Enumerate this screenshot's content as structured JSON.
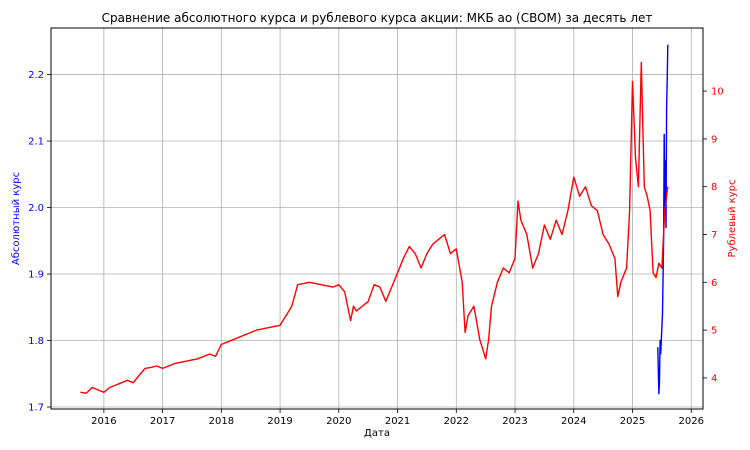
{
  "chart_data": {
    "type": "line",
    "title": "Сравнение абсолютного курса и рублевого курса акции: МКБ ао (CBOM) за десять лет",
    "xlabel": "Дата",
    "ylabel_left": "Абсолютный курс",
    "ylabel_right": "Рублевый курс",
    "x_ticks": [
      "2016",
      "2017",
      "2018",
      "2019",
      "2020",
      "2021",
      "2022",
      "2023",
      "2024",
      "2025",
      "2026"
    ],
    "xlim": [
      2015.1,
      2026.2
    ],
    "ylim_left": [
      1.697,
      2.27
    ],
    "ylim_right": [
      3.35,
      11.32
    ],
    "y_ticks_left": [
      "1.7",
      "1.8",
      "1.9",
      "2.0",
      "2.1",
      "2.2"
    ],
    "y_ticks_right": [
      "4",
      "5",
      "6",
      "7",
      "8",
      "9",
      "10"
    ],
    "grid": true,
    "colors": {
      "left": "#0000ff",
      "right": "#ff0000"
    },
    "series": [
      {
        "axis": "left",
        "color": "#0000ff",
        "x": [
          2025.43,
          2025.44,
          2025.45,
          2025.46,
          2025.47,
          2025.48,
          2025.5,
          2025.51,
          2025.52,
          2025.53,
          2025.54,
          2025.55,
          2025.56,
          2025.57,
          2025.58,
          2025.59,
          2025.6
        ],
        "y": [
          1.79,
          1.75,
          1.72,
          1.74,
          1.8,
          1.78,
          1.82,
          1.84,
          1.9,
          1.95,
          2.11,
          2.0,
          2.07,
          1.97,
          2.15,
          2.19,
          2.245
        ]
      },
      {
        "axis": "right",
        "color": "#ff0000",
        "x": [
          2015.6,
          2015.7,
          2015.8,
          2015.9,
          2016.0,
          2016.1,
          2016.2,
          2016.3,
          2016.4,
          2016.5,
          2016.6,
          2016.7,
          2016.8,
          2016.9,
          2017.0,
          2017.2,
          2017.4,
          2017.6,
          2017.8,
          2017.9,
          2018.0,
          2018.2,
          2018.4,
          2018.6,
          2018.8,
          2019.0,
          2019.1,
          2019.2,
          2019.3,
          2019.5,
          2019.7,
          2019.9,
          2020.0,
          2020.1,
          2020.2,
          2020.25,
          2020.3,
          2020.5,
          2020.6,
          2020.7,
          2020.8,
          2020.9,
          2021.0,
          2021.1,
          2021.2,
          2021.3,
          2021.4,
          2021.5,
          2021.6,
          2021.7,
          2021.8,
          2021.9,
          2022.0,
          2022.1,
          2022.15,
          2022.2,
          2022.3,
          2022.4,
          2022.5,
          2022.55,
          2022.6,
          2022.7,
          2022.8,
          2022.9,
          2023.0,
          2023.05,
          2023.1,
          2023.2,
          2023.3,
          2023.4,
          2023.5,
          2023.6,
          2023.7,
          2023.8,
          2023.9,
          2024.0,
          2024.1,
          2024.2,
          2024.3,
          2024.4,
          2024.5,
          2024.6,
          2024.7,
          2024.75,
          2024.8,
          2024.9,
          2024.95,
          2025.0,
          2025.05,
          2025.1,
          2025.15,
          2025.2,
          2025.25,
          2025.3,
          2025.35,
          2025.4,
          2025.45,
          2025.5,
          2025.55,
          2025.6
        ],
        "y": [
          3.7,
          3.68,
          3.8,
          3.75,
          3.7,
          3.8,
          3.85,
          3.9,
          3.95,
          3.9,
          4.05,
          4.2,
          4.22,
          4.25,
          4.2,
          4.3,
          4.35,
          4.4,
          4.5,
          4.45,
          4.7,
          4.8,
          4.9,
          5.0,
          5.05,
          5.1,
          5.3,
          5.5,
          5.95,
          6.0,
          5.95,
          5.9,
          5.95,
          5.8,
          5.2,
          5.5,
          5.4,
          5.6,
          5.95,
          5.9,
          5.6,
          5.9,
          6.2,
          6.5,
          6.75,
          6.6,
          6.3,
          6.6,
          6.8,
          6.9,
          7.0,
          6.6,
          6.7,
          6.0,
          4.95,
          5.3,
          5.5,
          4.8,
          4.4,
          4.8,
          5.5,
          6.0,
          6.3,
          6.2,
          6.5,
          7.7,
          7.3,
          7.0,
          6.3,
          6.6,
          7.2,
          6.9,
          7.3,
          7.0,
          7.5,
          8.2,
          7.8,
          8.0,
          7.6,
          7.5,
          7.0,
          6.8,
          6.5,
          5.7,
          6.0,
          6.3,
          7.5,
          10.2,
          8.6,
          8.0,
          10.6,
          8.0,
          7.8,
          7.5,
          6.2,
          6.1,
          6.4,
          6.3,
          7.5,
          8.0
        ]
      }
    ]
  }
}
